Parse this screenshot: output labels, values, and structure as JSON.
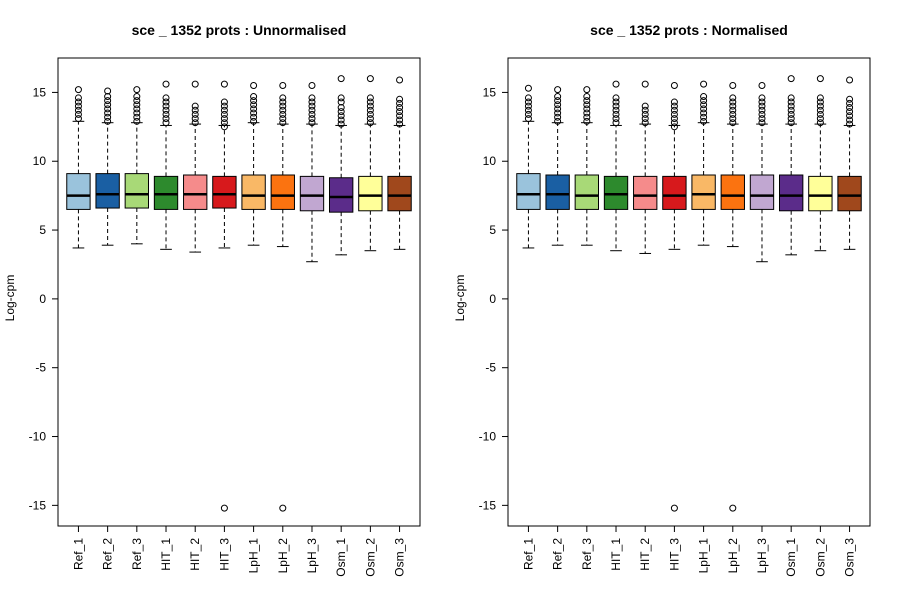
{
  "chart_data": [
    {
      "type": "box",
      "title": "sce _ 1352   prots : Unnormalised",
      "xlabel": "",
      "ylabel": "Log-cpm",
      "ylim": [
        -16.5,
        17.5
      ],
      "yticks": [
        15,
        10,
        5,
        0,
        -5,
        -10,
        -15
      ],
      "categories": [
        "Ref_1",
        "Ref_2",
        "Ref_3",
        "HIT_1",
        "HIT_2",
        "HIT_3",
        "LpH_1",
        "LpH_2",
        "LpH_3",
        "Osm_1",
        "Osm_2",
        "Osm_3"
      ],
      "colors": [
        "#9ac3dc",
        "#1a5fa3",
        "#a8d977",
        "#2d8a2d",
        "#f58b8b",
        "#d7191c",
        "#f9b866",
        "#fb7310",
        "#c1a7d1",
        "#5b2c8a",
        "#ffff99",
        "#a0481c"
      ],
      "boxes": [
        {
          "min": 3.7,
          "q1": 6.5,
          "median": 7.5,
          "q3": 9.1,
          "whisker_high": 12.9,
          "outliers": [
            13.1,
            13.4,
            13.7,
            14.0,
            14.3,
            14.6,
            15.2
          ]
        },
        {
          "min": 3.9,
          "q1": 6.6,
          "median": 7.6,
          "q3": 9.1,
          "whisker_high": 12.8,
          "outliers": [
            12.9,
            13.2,
            13.5,
            13.8,
            14.1,
            14.4,
            14.7,
            15.1
          ]
        },
        {
          "min": 4.0,
          "q1": 6.6,
          "median": 7.6,
          "q3": 9.1,
          "whisker_high": 12.8,
          "outliers": [
            12.9,
            13.2,
            13.5,
            13.8,
            14.1,
            14.4,
            14.7,
            15.2
          ]
        },
        {
          "min": 3.6,
          "q1": 6.5,
          "median": 7.6,
          "q3": 8.9,
          "whisker_high": 12.6,
          "outliers": [
            12.8,
            13.1,
            13.4,
            13.7,
            14.0,
            14.3,
            14.6,
            15.6
          ]
        },
        {
          "min": 3.4,
          "q1": 6.5,
          "median": 7.6,
          "q3": 9.0,
          "whisker_high": 12.7,
          "outliers": [
            12.8,
            13.1,
            13.4,
            13.7,
            14.0,
            15.6
          ]
        },
        {
          "min": 3.7,
          "q1": 6.6,
          "median": 7.6,
          "q3": 8.9,
          "whisker_high": 12.6,
          "outliers": [
            12.5,
            12.8,
            13.1,
            13.4,
            13.7,
            14.0,
            14.3,
            15.6,
            -15.2
          ]
        },
        {
          "min": 3.9,
          "q1": 6.5,
          "median": 7.5,
          "q3": 9.0,
          "whisker_high": 12.8,
          "outliers": [
            12.9,
            13.2,
            13.5,
            13.8,
            14.1,
            14.4,
            14.7,
            15.5
          ]
        },
        {
          "min": 3.8,
          "q1": 6.5,
          "median": 7.5,
          "q3": 9.0,
          "whisker_high": 12.7,
          "outliers": [
            12.8,
            13.1,
            13.4,
            13.7,
            14.0,
            14.3,
            14.6,
            15.5,
            -15.2
          ]
        },
        {
          "min": 2.7,
          "q1": 6.4,
          "median": 7.5,
          "q3": 8.9,
          "whisker_high": 12.7,
          "outliers": [
            12.8,
            13.1,
            13.4,
            13.7,
            14.0,
            14.3,
            14.6,
            15.5
          ]
        },
        {
          "min": 3.2,
          "q1": 6.3,
          "median": 7.4,
          "q3": 8.8,
          "whisker_high": 12.6,
          "outliers": [
            12.7,
            13.0,
            13.3,
            13.6,
            13.9,
            14.3,
            14.6,
            16.0
          ]
        },
        {
          "min": 3.5,
          "q1": 6.4,
          "median": 7.5,
          "q3": 8.9,
          "whisker_high": 12.7,
          "outliers": [
            12.8,
            13.1,
            13.4,
            13.7,
            14.0,
            14.3,
            14.6,
            16.0
          ]
        },
        {
          "min": 3.6,
          "q1": 6.4,
          "median": 7.5,
          "q3": 8.9,
          "whisker_high": 12.6,
          "outliers": [
            12.7,
            13.0,
            13.3,
            13.6,
            13.9,
            14.2,
            14.5,
            15.9
          ]
        }
      ]
    },
    {
      "type": "box",
      "title": "sce _ 1352   prots : Normalised",
      "xlabel": "",
      "ylabel": "Log-cpm",
      "ylim": [
        -16.5,
        17.5
      ],
      "yticks": [
        15,
        10,
        5,
        0,
        -5,
        -10,
        -15
      ],
      "categories": [
        "Ref_1",
        "Ref_2",
        "Ref_3",
        "HIT_1",
        "HIT_2",
        "HIT_3",
        "LpH_1",
        "LpH_2",
        "LpH_3",
        "Osm_1",
        "Osm_2",
        "Osm_3"
      ],
      "colors": [
        "#9ac3dc",
        "#1a5fa3",
        "#a8d977",
        "#2d8a2d",
        "#f58b8b",
        "#d7191c",
        "#f9b866",
        "#fb7310",
        "#c1a7d1",
        "#5b2c8a",
        "#ffff99",
        "#a0481c"
      ],
      "boxes": [
        {
          "min": 3.7,
          "q1": 6.5,
          "median": 7.6,
          "q3": 9.1,
          "whisker_high": 12.9,
          "outliers": [
            13.1,
            13.4,
            13.7,
            14.0,
            14.3,
            14.6,
            15.3
          ]
        },
        {
          "min": 3.9,
          "q1": 6.5,
          "median": 7.6,
          "q3": 9.0,
          "whisker_high": 12.8,
          "outliers": [
            12.9,
            13.2,
            13.5,
            13.8,
            14.1,
            14.4,
            14.7,
            15.2
          ]
        },
        {
          "min": 3.9,
          "q1": 6.5,
          "median": 7.5,
          "q3": 9.0,
          "whisker_high": 12.8,
          "outliers": [
            12.9,
            13.2,
            13.5,
            13.8,
            14.1,
            14.4,
            14.7,
            15.2
          ]
        },
        {
          "min": 3.5,
          "q1": 6.5,
          "median": 7.6,
          "q3": 8.9,
          "whisker_high": 12.6,
          "outliers": [
            12.8,
            13.1,
            13.4,
            13.7,
            14.0,
            14.3,
            14.6,
            15.6
          ]
        },
        {
          "min": 3.3,
          "q1": 6.5,
          "median": 7.5,
          "q3": 8.9,
          "whisker_high": 12.7,
          "outliers": [
            12.8,
            13.1,
            13.4,
            13.7,
            14.0,
            15.6
          ]
        },
        {
          "min": 3.6,
          "q1": 6.5,
          "median": 7.5,
          "q3": 8.9,
          "whisker_high": 12.6,
          "outliers": [
            12.5,
            12.8,
            13.1,
            13.4,
            13.7,
            14.0,
            14.3,
            15.5,
            -15.2
          ]
        },
        {
          "min": 3.9,
          "q1": 6.5,
          "median": 7.6,
          "q3": 9.0,
          "whisker_high": 12.8,
          "outliers": [
            12.9,
            13.2,
            13.5,
            13.8,
            14.1,
            14.4,
            14.7,
            15.6
          ]
        },
        {
          "min": 3.8,
          "q1": 6.5,
          "median": 7.5,
          "q3": 9.0,
          "whisker_high": 12.7,
          "outliers": [
            12.8,
            13.1,
            13.4,
            13.7,
            14.0,
            14.3,
            14.6,
            15.5,
            -15.2
          ]
        },
        {
          "min": 2.7,
          "q1": 6.5,
          "median": 7.5,
          "q3": 9.0,
          "whisker_high": 12.7,
          "outliers": [
            12.8,
            13.1,
            13.4,
            13.7,
            14.0,
            14.3,
            14.6,
            15.5
          ]
        },
        {
          "min": 3.2,
          "q1": 6.4,
          "median": 7.5,
          "q3": 9.0,
          "whisker_high": 12.7,
          "outliers": [
            12.8,
            13.1,
            13.4,
            13.7,
            14.0,
            14.3,
            14.6,
            16.0
          ]
        },
        {
          "min": 3.5,
          "q1": 6.4,
          "median": 7.5,
          "q3": 8.9,
          "whisker_high": 12.7,
          "outliers": [
            12.8,
            13.1,
            13.4,
            13.7,
            14.0,
            14.3,
            14.6,
            16.0
          ]
        },
        {
          "min": 3.6,
          "q1": 6.4,
          "median": 7.5,
          "q3": 8.9,
          "whisker_high": 12.6,
          "outliers": [
            12.7,
            13.0,
            13.3,
            13.6,
            13.9,
            14.2,
            14.5,
            15.9
          ]
        }
      ]
    }
  ]
}
